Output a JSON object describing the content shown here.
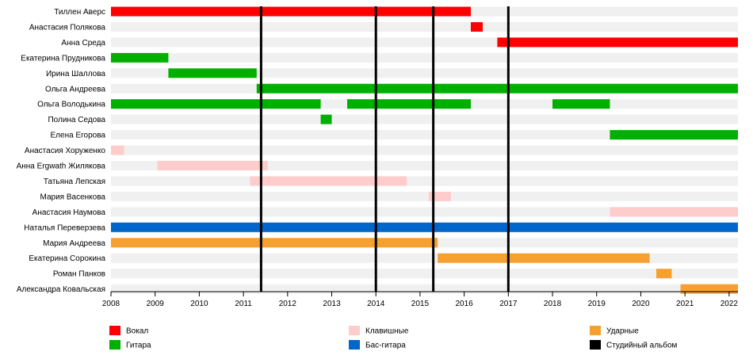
{
  "chart_data": {
    "type": "timeline",
    "members": [
      "Тиллен Аверс",
      "Анастасия Полякова",
      "Анна Среда",
      "Екатерина Прудникова",
      "Ирина Шаллова",
      "Ольга Андреева",
      "Ольга Володькина",
      "Полина Седова",
      "Елена Егорова",
      "Анастасия Хоруженко",
      "Анна Ergwath Жилякова",
      "Татьяна Лепская",
      "Мария Васенкова",
      "Анастасия Наумова",
      "Наталья Переверзева",
      "Мария Андреева",
      "Екатерина Сорокина",
      "Роман Панков",
      "Александра Ковальская"
    ],
    "xlim": [
      2008,
      2022.2
    ],
    "ticks": [
      "2008",
      "2009",
      "2010",
      "2011",
      "2012",
      "2013",
      "2014",
      "2015",
      "2016",
      "2017",
      "2018",
      "2019",
      "2020",
      "2021",
      "2022"
    ],
    "roles": [
      {
        "key": "vocal",
        "label": "Вокал",
        "color": "#ff0000"
      },
      {
        "key": "guitar",
        "label": "Гитара",
        "color": "#00b000"
      },
      {
        "key": "keys",
        "label": "Клавишные",
        "color": "#ffcccc"
      },
      {
        "key": "bass",
        "label": "Бас-гитара",
        "color": "#0066cc"
      },
      {
        "key": "drums",
        "label": "Ударные",
        "color": "#f5a030"
      },
      {
        "key": "album",
        "label": "Студийный альбом",
        "color": "#000000"
      }
    ],
    "spans": [
      {
        "row": 0,
        "role": "vocal",
        "start": 2008.0,
        "end": 2016.15
      },
      {
        "row": 1,
        "role": "vocal",
        "start": 2016.15,
        "end": 2016.42
      },
      {
        "row": 2,
        "role": "vocal",
        "start": 2016.75,
        "end": 2022.2
      },
      {
        "row": 3,
        "role": "guitar",
        "start": 2008.0,
        "end": 2009.3
      },
      {
        "row": 4,
        "role": "guitar",
        "start": 2009.3,
        "end": 2011.3
      },
      {
        "row": 5,
        "role": "guitar",
        "start": 2011.3,
        "end": 2022.2
      },
      {
        "row": 6,
        "role": "guitar",
        "start": 2008.0,
        "end": 2012.75
      },
      {
        "row": 6,
        "role": "guitar",
        "start": 2013.35,
        "end": 2016.15
      },
      {
        "row": 6,
        "role": "guitar",
        "start": 2018.0,
        "end": 2019.3
      },
      {
        "row": 7,
        "role": "guitar",
        "start": 2012.75,
        "end": 2013.0
      },
      {
        "row": 8,
        "role": "guitar",
        "start": 2019.3,
        "end": 2022.2
      },
      {
        "row": 9,
        "role": "keys",
        "start": 2008.0,
        "end": 2008.3
      },
      {
        "row": 10,
        "role": "keys",
        "start": 2009.05,
        "end": 2011.55
      },
      {
        "row": 11,
        "role": "keys",
        "start": 2011.15,
        "end": 2014.7
      },
      {
        "row": 12,
        "role": "keys",
        "start": 2015.2,
        "end": 2015.7
      },
      {
        "row": 13,
        "role": "keys",
        "start": 2019.3,
        "end": 2022.2
      },
      {
        "row": 14,
        "role": "bass",
        "start": 2008.0,
        "end": 2022.2
      },
      {
        "row": 15,
        "role": "drums",
        "start": 2008.0,
        "end": 2015.4
      },
      {
        "row": 16,
        "role": "drums",
        "start": 2015.4,
        "end": 2020.2
      },
      {
        "row": 17,
        "role": "drums",
        "start": 2020.35,
        "end": 2020.7
      },
      {
        "row": 18,
        "role": "drums",
        "start": 2020.9,
        "end": 2022.2
      }
    ],
    "albums": [
      2011.4,
      2014.0,
      2015.3,
      2017.0
    ]
  }
}
